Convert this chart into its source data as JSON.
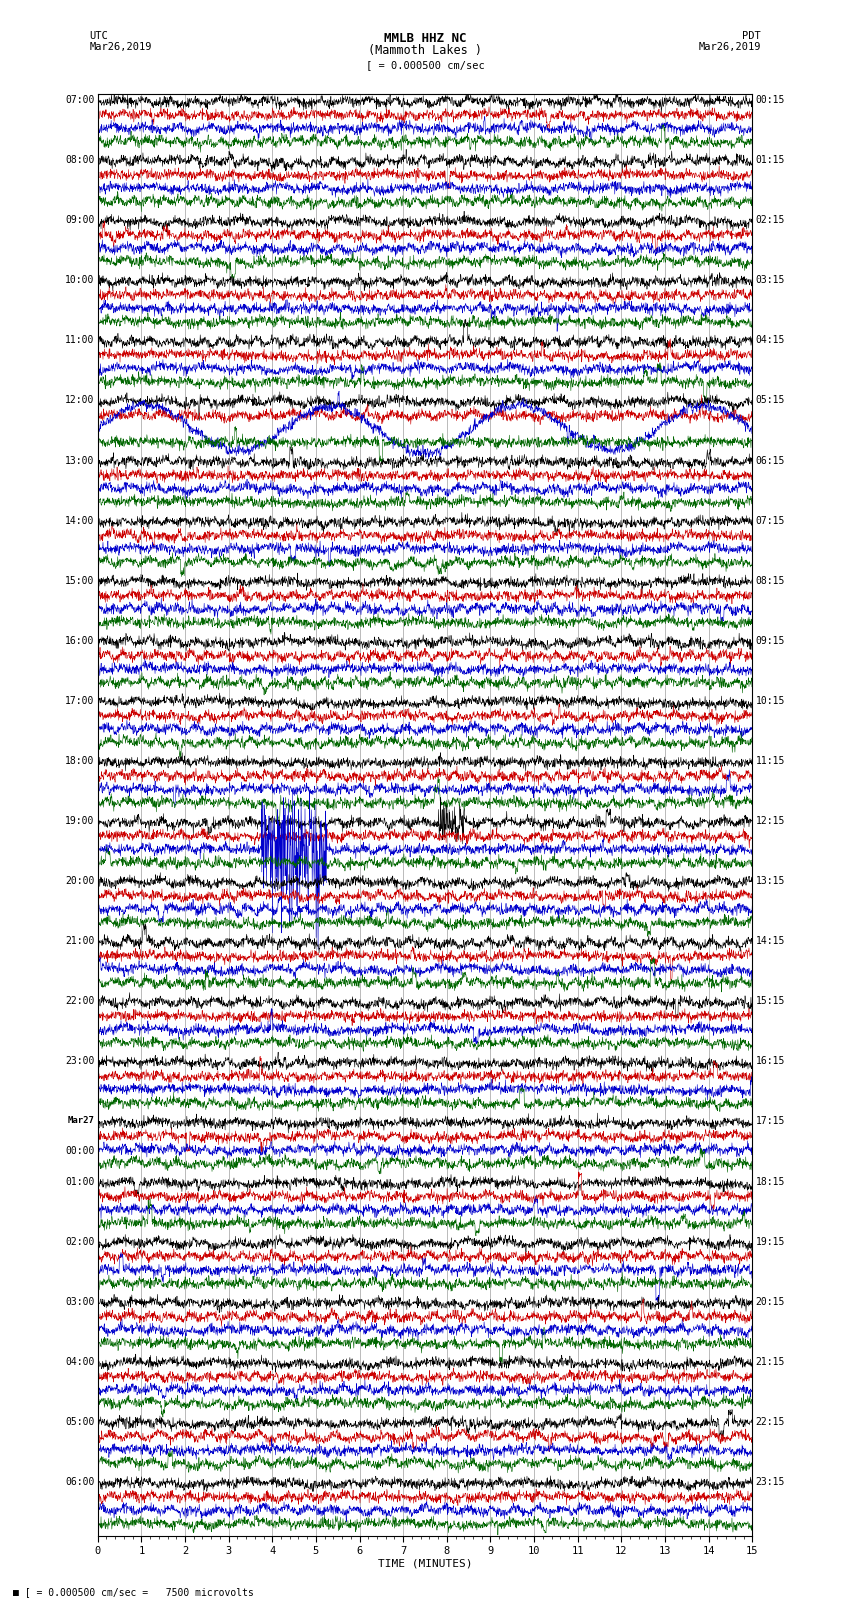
{
  "title_line1": "MMLB HHZ NC",
  "title_line2": "(Mammoth Lakes )",
  "scale_text": "= 0.000500 cm/sec",
  "bottom_text": "= 0.000500 cm/sec =   7500 microvolts",
  "xlabel": "TIME (MINUTES)",
  "utc_label": "UTC",
  "utc_date": "Mar26,2019",
  "pdt_label": "PDT",
  "pdt_date": "Mar26,2019",
  "bg_color": "#ffffff",
  "trace_colors": [
    "#000000",
    "#cc0000",
    "#0000cc",
    "#006600"
  ],
  "time_xlim": [
    0,
    15
  ],
  "xticks": [
    0,
    1,
    2,
    3,
    4,
    5,
    6,
    7,
    8,
    9,
    10,
    11,
    12,
    13,
    14,
    15
  ],
  "left_times_utc": [
    "07:00",
    "08:00",
    "09:00",
    "10:00",
    "11:00",
    "12:00",
    "13:00",
    "14:00",
    "15:00",
    "16:00",
    "17:00",
    "18:00",
    "19:00",
    "20:00",
    "21:00",
    "22:00",
    "23:00",
    "Mar27\n00:00",
    "01:00",
    "02:00",
    "03:00",
    "04:00",
    "05:00",
    "06:00"
  ],
  "right_times_pdt": [
    "00:15",
    "01:15",
    "02:15",
    "03:15",
    "04:15",
    "05:15",
    "06:15",
    "07:15",
    "08:15",
    "09:15",
    "10:15",
    "11:15",
    "12:15",
    "13:15",
    "14:15",
    "15:15",
    "16:15",
    "17:15",
    "18:15",
    "19:15",
    "20:15",
    "21:15",
    "22:15",
    "23:15"
  ],
  "n_groups": 24,
  "traces_per_group": 4,
  "figwidth": 8.5,
  "figheight": 16.13,
  "event_osc_group": 5,
  "event_osc_chan": 2,
  "event_spike_group": 12,
  "event_spike_chan": 2,
  "event_spike2_group": 12,
  "event_spike2_chan": 0
}
